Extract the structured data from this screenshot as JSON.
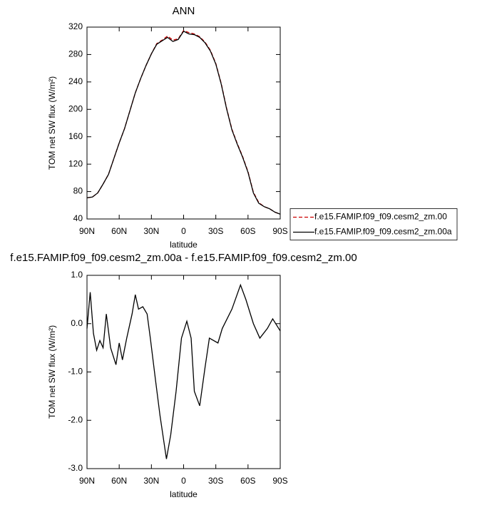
{
  "chart_data": [
    {
      "type": "line",
      "title": "ANN",
      "x_label": "latitude",
      "y_label": "TOM net SW flux (W/m²)",
      "x": [
        90,
        85,
        80,
        75,
        70,
        65,
        60,
        55,
        50,
        45,
        40,
        35,
        30,
        25,
        20,
        15,
        10,
        5,
        0,
        -5,
        -10,
        -15,
        -20,
        -25,
        -30,
        -35,
        -40,
        -45,
        -50,
        -55,
        -60,
        -65,
        -70,
        -75,
        -80,
        -85,
        -90
      ],
      "series": [
        {
          "name": "f.e15.FAMIP.f09_f09.cesm2_zm.00",
          "color": "#cc0000",
          "linestyle": "dashed",
          "values": [
            71,
            72,
            78,
            91,
            105,
            128,
            151,
            172,
            198,
            224,
            245,
            264,
            281,
            296,
            301,
            307,
            301,
            303,
            315,
            312,
            310,
            306,
            298,
            286,
            267,
            238,
            202,
            171,
            150,
            131,
            109,
            79,
            64,
            58,
            55,
            50,
            47
          ]
        },
        {
          "name": "f.e15.FAMIP.f09_f09.cesm2_zm.00a",
          "color": "#000000",
          "linestyle": "solid",
          "values": [
            71,
            72,
            78,
            91,
            105,
            128,
            151,
            172,
            198,
            224,
            245,
            264,
            281,
            295,
            300,
            305,
            299,
            302,
            314,
            310,
            309,
            305,
            297,
            285,
            266,
            237,
            201,
            170,
            149,
            130,
            108,
            78,
            63,
            58,
            55,
            50,
            47
          ]
        }
      ],
      "xlim": [
        90,
        -90
      ],
      "xticks": [
        {
          "value": 90,
          "label": "90N"
        },
        {
          "value": 60,
          "label": "60N"
        },
        {
          "value": 30,
          "label": "30N"
        },
        0,
        {
          "value": -30,
          "label": "30S"
        },
        {
          "value": -60,
          "label": "60S"
        },
        {
          "value": -90,
          "label": "90S"
        }
      ],
      "ylim": [
        40,
        320
      ],
      "yticks": [
        40,
        80,
        120,
        160,
        200,
        240,
        280,
        320
      ],
      "legend": "right"
    },
    {
      "type": "line",
      "title": "f.e15.FAMIP.f09_f09.cesm2_zm.00a - f.e15.FAMIP.f09_f09.cesm2_zm.00",
      "x_label": "latitude",
      "y_label": "TOM net SW flux (W/m²)",
      "x": [
        90,
        87,
        84,
        81,
        78,
        75,
        72,
        68,
        63,
        60,
        57,
        53,
        48,
        45,
        42,
        38,
        34,
        31,
        26,
        22,
        16,
        12,
        7,
        2,
        -3,
        -7,
        -10,
        -15,
        -20,
        -24,
        -32,
        -36,
        -45,
        -53,
        -58,
        -65,
        -71,
        -78,
        -83,
        -90
      ],
      "values": [
        -0.1,
        0.65,
        -0.2,
        -0.55,
        -0.35,
        -0.5,
        0.2,
        -0.5,
        -0.85,
        -0.4,
        -0.75,
        -0.3,
        0.2,
        0.6,
        0.3,
        0.35,
        0.2,
        -0.3,
        -1.2,
        -1.9,
        -2.8,
        -2.3,
        -1.4,
        -0.3,
        0.05,
        -0.3,
        -1.4,
        -1.7,
        -0.9,
        -0.3,
        -0.4,
        -0.1,
        0.3,
        0.8,
        0.5,
        0.0,
        -0.3,
        -0.1,
        0.1,
        -0.15
      ],
      "color": "#000000",
      "linestyle": "solid",
      "xlim": [
        90,
        -90
      ],
      "xticks": [
        {
          "value": 90,
          "label": "90N"
        },
        {
          "value": 60,
          "label": "60N"
        },
        {
          "value": 30,
          "label": "30N"
        },
        0,
        {
          "value": -30,
          "label": "30S"
        },
        {
          "value": -60,
          "label": "60S"
        },
        {
          "value": -90,
          "label": "90S"
        }
      ],
      "ylim": [
        -3,
        1
      ],
      "yticks": [
        {
          "value": -3,
          "label": "-3.0"
        },
        {
          "value": -2,
          "label": "-2.0"
        },
        {
          "value": -1,
          "label": "-1.0"
        },
        {
          "value": 0,
          "label": "0.0"
        },
        {
          "value": 1,
          "label": "1.0"
        }
      ]
    }
  ]
}
